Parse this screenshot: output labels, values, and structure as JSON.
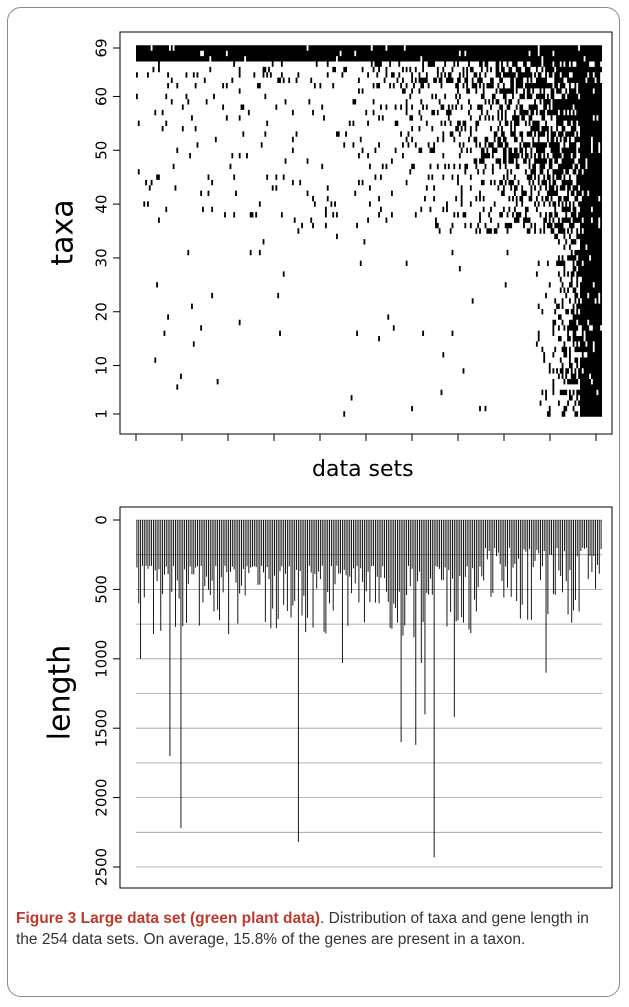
{
  "chart_data": [
    {
      "type": "heatmap",
      "title": "",
      "xlabel": "data sets",
      "ylabel": "taxa",
      "ylim": [
        1,
        69
      ],
      "y_ticks": [
        1,
        10,
        20,
        30,
        40,
        50,
        60,
        69
      ],
      "n_columns": 254,
      "n_rows": 69,
      "fill_fraction": 0.158,
      "colors": {
        "present": "#000000",
        "absent": "#ffffff"
      },
      "grid": false
    },
    {
      "type": "bar",
      "title": "",
      "xlabel": "",
      "ylabel": "length",
      "y_reversed": true,
      "ylim": [
        0,
        2700
      ],
      "y_ticks": [
        0,
        500,
        1000,
        1500,
        2000,
        2500
      ],
      "gridlines": [
        0,
        250,
        500,
        750,
        1000,
        1250,
        1500,
        1750,
        2000,
        2250,
        2500
      ],
      "grid": true,
      "n_bars": 254,
      "notable_values": [
        {
          "data_set": 19,
          "length": 1700
        },
        {
          "data_set": 25,
          "length": 2220
        },
        {
          "data_set": 89,
          "length": 2320
        },
        {
          "data_set": 113,
          "length": 1030
        },
        {
          "data_set": 145,
          "length": 1600
        },
        {
          "data_set": 156,
          "length": 1030
        },
        {
          "data_set": 158,
          "length": 1400
        },
        {
          "data_set": 153,
          "length": 1620
        },
        {
          "data_set": 163,
          "length": 2430
        },
        {
          "data_set": 174,
          "length": 1420
        },
        {
          "data_set": 224,
          "length": 1100
        },
        {
          "data_set": 238,
          "length": 740
        }
      ]
    }
  ],
  "caption": {
    "label": "Figure 3 Large data set (green plant data)",
    "text": ". Distribution of taxa and gene length in the 254 data sets. On average, 15.8% of the genes are present in a taxon."
  }
}
